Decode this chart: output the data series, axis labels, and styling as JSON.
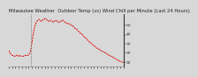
{
  "title": "Milwaukee Weather  Outdoor Temp (vs) Wind Chill per Minute (Last 24 Hours)",
  "line_color": "#dd0000",
  "background_color": "#d8d8d8",
  "plot_bg_color": "#d8d8d8",
  "y_values": [
    22,
    20,
    19,
    18,
    17,
    17,
    16,
    16,
    16,
    17,
    17,
    16,
    16,
    17,
    17,
    16,
    16,
    16,
    16,
    16,
    17,
    17,
    17,
    17,
    17,
    18,
    19,
    21,
    26,
    32,
    38,
    43,
    47,
    50,
    52,
    54,
    55,
    56,
    56,
    55,
    54,
    55,
    55,
    56,
    56,
    57,
    57,
    56,
    55,
    55,
    54,
    54,
    55,
    55,
    54,
    53,
    54,
    54,
    55,
    55,
    54,
    54,
    53,
    53,
    54,
    54,
    54,
    55,
    55,
    54,
    53,
    52,
    52,
    52,
    52,
    51,
    51,
    50,
    50,
    49,
    49,
    48,
    47,
    46,
    46,
    45,
    44,
    43,
    42,
    41,
    41,
    40,
    39,
    38,
    37,
    36,
    36,
    35,
    34,
    33,
    32,
    31,
    31,
    30,
    29,
    28,
    28,
    27,
    26,
    25,
    25,
    24,
    24,
    23,
    23,
    22,
    22,
    21,
    21,
    20,
    20,
    19,
    19,
    18,
    18,
    17,
    17,
    16,
    16,
    15,
    15,
    14,
    14,
    13,
    13,
    12,
    12,
    11,
    11,
    10,
    10,
    10,
    10,
    9
  ],
  "ylim": [
    5,
    62
  ],
  "ytick_values": [
    10,
    20,
    30,
    40,
    50
  ],
  "ytick_labels": [
    "10",
    "20",
    "30",
    "40",
    "50"
  ],
  "vline_x": [
    28,
    28
  ],
  "title_fontsize": 3.8,
  "tick_fontsize": 3.2,
  "line_width": 0.7,
  "dashes": [
    2,
    1
  ],
  "spine_color": "#888888",
  "num_xticks": 36
}
